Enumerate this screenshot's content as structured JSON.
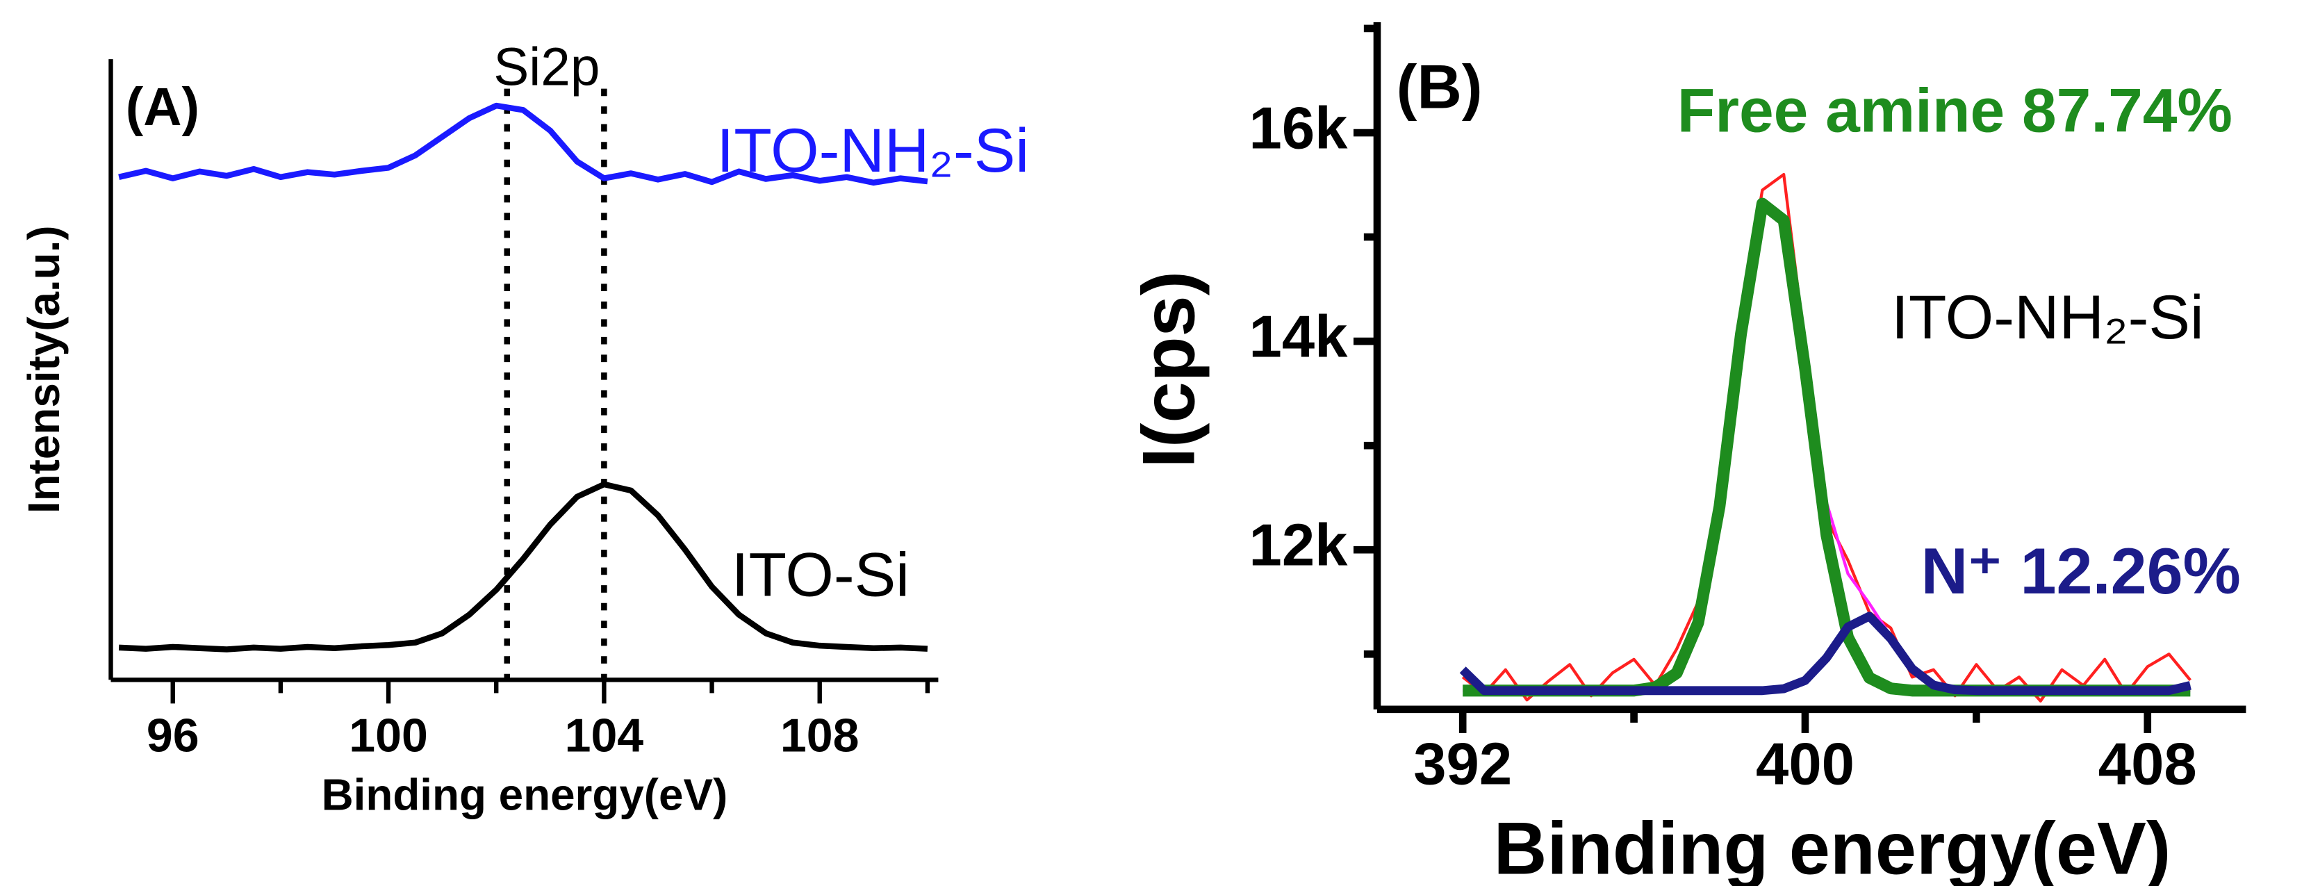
{
  "chart_data": [
    {
      "type": "line",
      "xlabel": "Binding energy(eV)",
      "ylabel": "Intensity(a.u.)",
      "xlim": [
        94.85,
        110.2
      ],
      "xticks": [
        96,
        100,
        104,
        108
      ],
      "xminor": [
        98,
        102,
        106,
        110
      ],
      "ylim": [
        0,
        100
      ],
      "vlines": [
        102.2,
        104
      ],
      "annotations": [
        {
          "text": "(A)",
          "color": "#000000"
        },
        {
          "text": "Si2p",
          "color": "#000000"
        },
        {
          "text": "ITO-NH₂-Si",
          "color": "#1a1aff"
        },
        {
          "text": "ITO-Si",
          "color": "#000000"
        }
      ],
      "x": [
        95,
        95.5,
        96,
        96.5,
        97,
        97.5,
        98,
        98.5,
        99,
        99.5,
        100,
        100.5,
        101,
        101.5,
        102,
        102.5,
        103,
        103.5,
        104,
        104.5,
        105,
        105.5,
        106,
        106.5,
        107,
        107.5,
        108,
        108.5,
        109,
        109.5,
        110
      ],
      "series": [
        {
          "color": "#1a1aff",
          "values": [
            81.0,
            82.0,
            80.8,
            81.9,
            81.2,
            82.3,
            81.0,
            81.8,
            81.4,
            82.0,
            82.5,
            84.5,
            87.5,
            90.5,
            92.5,
            91.8,
            88.5,
            83.5,
            80.8,
            81.6,
            80.6,
            81.5,
            80.2,
            81.9,
            80.7,
            81.3,
            80.4,
            81.0,
            80.1,
            80.8,
            80.3
          ]
        },
        {
          "color": "#000000",
          "values": [
            5.2,
            5.0,
            5.3,
            5.1,
            4.9,
            5.2,
            5.0,
            5.3,
            5.1,
            5.4,
            5.6,
            6.0,
            7.5,
            10.5,
            14.5,
            19.5,
            25,
            29.5,
            31.5,
            30.5,
            26.5,
            21,
            15,
            10.5,
            7.5,
            6,
            5.5,
            5.3,
            5.1,
            5.2,
            5.0
          ]
        }
      ]
    },
    {
      "type": "line",
      "xlabel": "Binding energy(eV)",
      "ylabel": "I(cps)",
      "xlim": [
        390,
        410.3
      ],
      "xticks": [
        392,
        400,
        408
      ],
      "xminor": [
        396,
        404
      ],
      "ylim": [
        10470,
        17060
      ],
      "yticks": [
        {
          "value": 12000,
          "label": "12k"
        },
        {
          "value": 14000,
          "label": "14k"
        },
        {
          "value": 16000,
          "label": "16k"
        }
      ],
      "yminor": [
        11000,
        13000,
        15000,
        17000
      ],
      "annotations": [
        {
          "text": "(B)",
          "color": "#000000"
        },
        {
          "text": "Free amine 87.74%",
          "color": "#1e8c1e"
        },
        {
          "text": "ITO-NH₂-Si",
          "color": "#000000"
        },
        {
          "text": "N⁺  12.26%",
          "color": "#1c1c8a"
        }
      ],
      "x": [
        392,
        392.5,
        393,
        393.5,
        394,
        394.5,
        395,
        395.5,
        396,
        396.5,
        397,
        397.5,
        398,
        398.5,
        399,
        399.5,
        400,
        400.5,
        401,
        401.5,
        402,
        402.5,
        403,
        403.5,
        404,
        404.5,
        405,
        405.5,
        406,
        406.5,
        407,
        407.5,
        408,
        408.5,
        409
      ],
      "series": [
        {
          "color": "#ff2020",
          "values": [
            10780,
            10620,
            10850,
            10560,
            10740,
            10900,
            10600,
            10820,
            10950,
            10700,
            11050,
            11500,
            12300,
            14250,
            15450,
            15600,
            13950,
            12300,
            11900,
            11400,
            11250,
            10780,
            10850,
            10600,
            10900,
            10650,
            10780,
            10550,
            10850,
            10700,
            10950,
            10620,
            10880,
            11000,
            10750
          ]
        },
        {
          "color": "#ff20ff",
          "values": [
            10650,
            10650,
            10650,
            10650,
            10650,
            10650,
            10650,
            10650,
            10650,
            10681,
            10818,
            11300,
            12416,
            14069,
            15320,
            15178,
            13829,
            12453,
            11771,
            11486,
            11170,
            10860,
            10703,
            10658,
            10650,
            10650,
            10650,
            10650,
            10650,
            10650,
            10650,
            10650,
            10650,
            10650,
            10650
          ]
        },
        {
          "color": "#1e8c1e",
          "values": [
            10650,
            10650,
            10650,
            10650,
            10650,
            10650,
            10650,
            10650,
            10650,
            10681,
            10818,
            11300,
            12416,
            14069,
            15320,
            15160,
            13732,
            12139,
            11160,
            10773,
            10671,
            10650,
            10650,
            10650,
            10650,
            10650,
            10650,
            10650,
            10650,
            10650,
            10650,
            10650,
            10650,
            10650,
            10650
          ]
        },
        {
          "color": "#1c1c8a",
          "values": [
            10850,
            10650,
            10650,
            10650,
            10650,
            10650,
            10650,
            10650,
            10650,
            10650,
            10650,
            10650,
            10650,
            10650,
            10650,
            10668,
            10747,
            10964,
            11261,
            11363,
            11149,
            10860,
            10703,
            10658,
            10650,
            10650,
            10650,
            10650,
            10650,
            10650,
            10650,
            10650,
            10650,
            10650,
            10700
          ]
        }
      ]
    }
  ]
}
